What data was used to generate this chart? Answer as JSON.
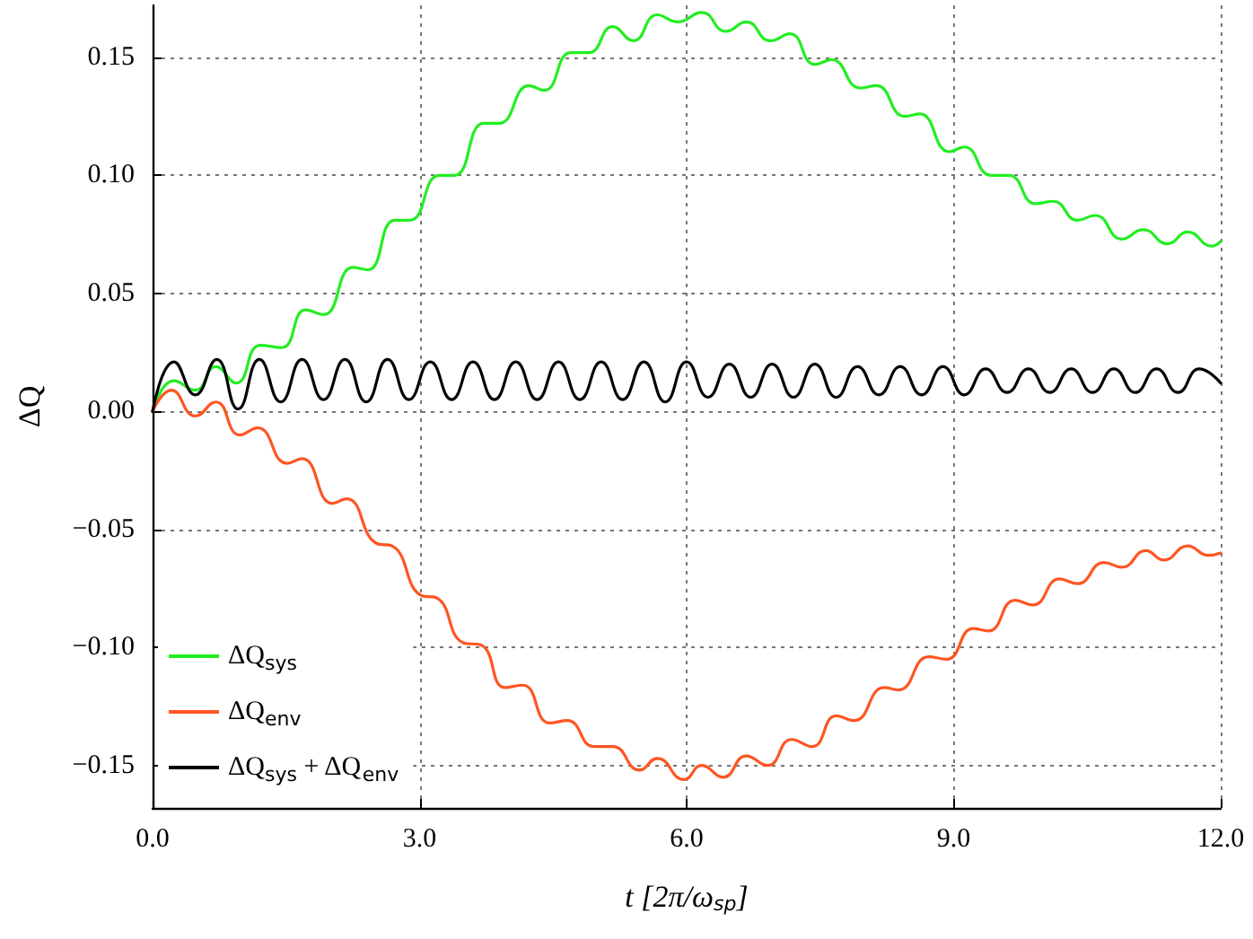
{
  "chart_data": {
    "type": "line",
    "xlabel": "t [2π/ω$_{sp}$]",
    "ylabel": "ΔQ",
    "xlim": [
      0,
      12
    ],
    "xticks": [
      {
        "value": 0,
        "label": "0.0"
      },
      {
        "value": 3,
        "label": "3.0"
      },
      {
        "value": 6,
        "label": "6.0"
      },
      {
        "value": 9,
        "label": "9.0"
      },
      {
        "value": 12,
        "label": "12.0"
      }
    ],
    "ylim": [
      -0.168,
      0.172
    ],
    "yticks": [
      {
        "value": -0.15,
        "label": "−0.15"
      },
      {
        "value": -0.1,
        "label": "−0.10"
      },
      {
        "value": -0.05,
        "label": "−0.05"
      },
      {
        "value": 0,
        "label": "0.00"
      },
      {
        "value": 0.05,
        "label": "0.05"
      },
      {
        "value": 0.1,
        "label": "0.10"
      },
      {
        "value": 0.15,
        "label": "0.15"
      }
    ],
    "grid": true,
    "legend": "bottom left",
    "marker": "none",
    "line_style": "solid",
    "series": [
      {
        "name": "ΔQ$_{sys}$",
        "color": "#22ee22",
        "x": [
          0,
          0.24,
          0.48,
          0.71,
          0.94,
          1.21,
          1.45,
          1.72,
          1.92,
          2.25,
          2.42,
          2.72,
          2.89,
          3.22,
          3.39,
          3.72,
          3.89,
          4.23,
          4.4,
          4.7,
          4.9,
          5.17,
          5.4,
          5.67,
          5.9,
          6.17,
          6.44,
          6.67,
          6.94,
          7.16,
          7.44,
          7.63,
          7.95,
          8.13,
          8.45,
          8.62,
          8.95,
          9.12,
          9.42,
          9.62,
          9.92,
          10.12,
          10.39,
          10.59,
          10.89,
          11.13,
          11.4,
          11.63,
          11.9,
          12
        ],
        "values": [
          0,
          0.013,
          0.009,
          0.019,
          0.012,
          0.028,
          0.027,
          0.043,
          0.041,
          0.061,
          0.06,
          0.081,
          0.081,
          0.1,
          0.1,
          0.122,
          0.122,
          0.138,
          0.136,
          0.152,
          0.152,
          0.163,
          0.157,
          0.168,
          0.165,
          0.169,
          0.161,
          0.165,
          0.157,
          0.16,
          0.147,
          0.149,
          0.137,
          0.138,
          0.125,
          0.126,
          0.11,
          0.112,
          0.1,
          0.1,
          0.088,
          0.089,
          0.081,
          0.083,
          0.073,
          0.077,
          0.071,
          0.076,
          0.07,
          0.072
        ]
      },
      {
        "name": "ΔQ$_{env}$",
        "color": "#ff5522",
        "x": [
          0,
          0.21,
          0.48,
          0.71,
          0.98,
          1.18,
          1.51,
          1.68,
          2.02,
          2.18,
          2.52,
          2.69,
          3.02,
          3.19,
          3.49,
          3.69,
          3.96,
          4.16,
          4.46,
          4.66,
          4.96,
          5.17,
          5.47,
          5.67,
          5.97,
          6.17,
          6.41,
          6.67,
          6.91,
          7.18,
          7.41,
          7.68,
          7.88,
          8.22,
          8.38,
          8.72,
          8.92,
          9.22,
          9.39,
          9.69,
          9.89,
          10.19,
          10.39,
          10.69,
          10.89,
          11.16,
          11.36,
          11.63,
          11.86,
          12
        ],
        "values": [
          0,
          0.009,
          -0.002,
          0.004,
          -0.01,
          -0.007,
          -0.022,
          -0.02,
          -0.039,
          -0.037,
          -0.056,
          -0.057,
          -0.078,
          -0.079,
          -0.098,
          -0.099,
          -0.117,
          -0.116,
          -0.132,
          -0.131,
          -0.142,
          -0.142,
          -0.152,
          -0.147,
          -0.156,
          -0.15,
          -0.155,
          -0.146,
          -0.15,
          -0.139,
          -0.142,
          -0.129,
          -0.131,
          -0.117,
          -0.118,
          -0.104,
          -0.105,
          -0.092,
          -0.093,
          -0.08,
          -0.082,
          -0.071,
          -0.073,
          -0.064,
          -0.066,
          -0.059,
          -0.063,
          -0.057,
          -0.061,
          -0.06
        ]
      },
      {
        "name": "ΔQ$_{sys}$ + ΔQ$_{env}$",
        "color": "#000000",
        "x": [
          0,
          0.24,
          0.48,
          0.72,
          0.96,
          1.2,
          1.44,
          1.68,
          1.92,
          2.16,
          2.4,
          2.64,
          2.88,
          3.12,
          3.36,
          3.6,
          3.84,
          4.08,
          4.32,
          4.56,
          4.8,
          5.04,
          5.28,
          5.52,
          5.76,
          6,
          6.24,
          6.48,
          6.72,
          6.96,
          7.2,
          7.44,
          7.68,
          7.92,
          8.16,
          8.4,
          8.64,
          8.88,
          9.12,
          9.36,
          9.6,
          9.84,
          10.08,
          10.32,
          10.56,
          10.8,
          11.04,
          11.28,
          11.52,
          11.76,
          12
        ],
        "values": [
          0,
          0.021,
          0.007,
          0.022,
          0.001,
          0.022,
          0.004,
          0.022,
          0.005,
          0.022,
          0.004,
          0.022,
          0.005,
          0.021,
          0.005,
          0.021,
          0.005,
          0.021,
          0.005,
          0.021,
          0.005,
          0.021,
          0.005,
          0.021,
          0.004,
          0.021,
          0.006,
          0.02,
          0.006,
          0.02,
          0.006,
          0.02,
          0.006,
          0.019,
          0.007,
          0.019,
          0.007,
          0.019,
          0.007,
          0.018,
          0.008,
          0.018,
          0.008,
          0.018,
          0.008,
          0.018,
          0.008,
          0.018,
          0.008,
          0.018,
          0.012
        ]
      }
    ]
  }
}
